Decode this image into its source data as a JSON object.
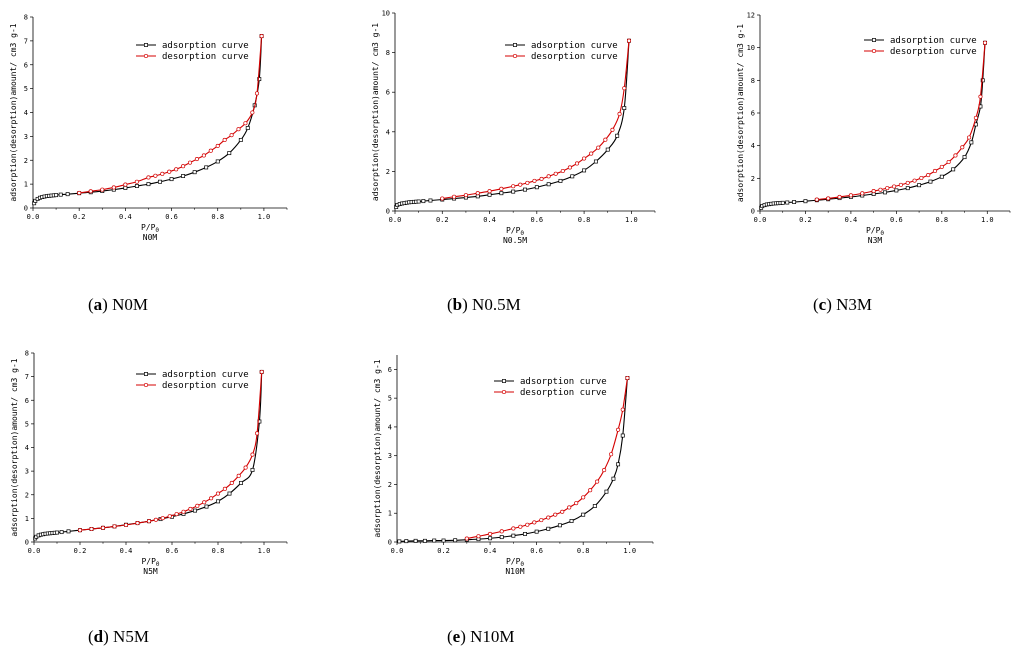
{
  "chart_data": [
    {
      "type": "line",
      "id": "a",
      "caption_letter": "a",
      "caption_text": "N0M",
      "sample_label": "N0M",
      "xlabel": "P/P0",
      "ylabel": "adsorption(desorption)amount/ cm3 g-1",
      "xlim": [
        0,
        1.1
      ],
      "ylim": [
        0,
        8
      ],
      "xticks": [
        "0.0",
        "0.2",
        "0.4",
        "0.6",
        "0.8",
        "1.0"
      ],
      "yticks": [
        "0",
        "1",
        "2",
        "3",
        "4",
        "5",
        "6",
        "7",
        "8"
      ],
      "legend": "top-right",
      "series": [
        {
          "name": "adsorption curve",
          "color": "#000000",
          "x": [
            0.005,
            0.01,
            0.02,
            0.03,
            0.04,
            0.05,
            0.06,
            0.07,
            0.08,
            0.09,
            0.1,
            0.12,
            0.15,
            0.2,
            0.25,
            0.3,
            0.35,
            0.4,
            0.45,
            0.5,
            0.55,
            0.6,
            0.65,
            0.7,
            0.75,
            0.8,
            0.85,
            0.9,
            0.93,
            0.96,
            0.98,
            0.99
          ],
          "y": [
            0.2,
            0.3,
            0.38,
            0.43,
            0.46,
            0.48,
            0.5,
            0.51,
            0.52,
            0.53,
            0.54,
            0.56,
            0.58,
            0.62,
            0.66,
            0.71,
            0.77,
            0.84,
            0.92,
            1.0,
            1.1,
            1.21,
            1.34,
            1.5,
            1.7,
            1.95,
            2.3,
            2.85,
            3.35,
            4.3,
            5.4,
            7.2
          ]
        },
        {
          "name": "desorption curve",
          "color": "#d40000",
          "x": [
            0.99,
            0.97,
            0.95,
            0.92,
            0.89,
            0.86,
            0.83,
            0.8,
            0.77,
            0.74,
            0.71,
            0.68,
            0.65,
            0.62,
            0.59,
            0.56,
            0.53,
            0.5,
            0.45,
            0.4,
            0.35,
            0.3,
            0.25,
            0.2
          ],
          "y": [
            7.2,
            4.8,
            4.0,
            3.55,
            3.3,
            3.05,
            2.85,
            2.6,
            2.4,
            2.2,
            2.05,
            1.9,
            1.75,
            1.62,
            1.52,
            1.43,
            1.35,
            1.28,
            1.1,
            0.98,
            0.86,
            0.77,
            0.7,
            0.63
          ]
        }
      ]
    },
    {
      "type": "line",
      "id": "b",
      "caption_letter": "b",
      "caption_text": "N0.5M",
      "sample_label": "N0.5M",
      "xlabel": "P/P0",
      "ylabel": "adsorption(desorption)amount/ cm3 g-1",
      "xlim": [
        0,
        1.1
      ],
      "ylim": [
        0,
        10
      ],
      "xticks": [
        "0.0",
        "0.2",
        "0.4",
        "0.6",
        "0.8",
        "1.0"
      ],
      "yticks": [
        "0",
        "2",
        "4",
        "6",
        "8",
        "10"
      ],
      "legend": "top-right",
      "series": [
        {
          "name": "adsorption curve",
          "color": "#000000",
          "x": [
            0.005,
            0.01,
            0.02,
            0.03,
            0.04,
            0.05,
            0.06,
            0.07,
            0.08,
            0.09,
            0.1,
            0.12,
            0.15,
            0.2,
            0.25,
            0.3,
            0.35,
            0.4,
            0.45,
            0.5,
            0.55,
            0.6,
            0.65,
            0.7,
            0.75,
            0.8,
            0.85,
            0.9,
            0.94,
            0.97,
            0.99
          ],
          "y": [
            0.2,
            0.3,
            0.35,
            0.38,
            0.4,
            0.42,
            0.44,
            0.45,
            0.46,
            0.47,
            0.48,
            0.5,
            0.53,
            0.58,
            0.63,
            0.68,
            0.74,
            0.82,
            0.9,
            0.98,
            1.08,
            1.2,
            1.35,
            1.52,
            1.75,
            2.05,
            2.5,
            3.1,
            3.8,
            5.2,
            8.6
          ]
        },
        {
          "name": "desorption curve",
          "color": "#d40000",
          "x": [
            0.99,
            0.97,
            0.95,
            0.92,
            0.89,
            0.86,
            0.83,
            0.8,
            0.77,
            0.74,
            0.71,
            0.68,
            0.65,
            0.62,
            0.59,
            0.56,
            0.53,
            0.5,
            0.45,
            0.4,
            0.35,
            0.3,
            0.25,
            0.2
          ],
          "y": [
            8.6,
            6.2,
            4.9,
            4.1,
            3.6,
            3.2,
            2.9,
            2.65,
            2.4,
            2.2,
            2.02,
            1.88,
            1.75,
            1.62,
            1.52,
            1.42,
            1.33,
            1.25,
            1.12,
            1.0,
            0.9,
            0.8,
            0.72,
            0.63
          ]
        }
      ]
    },
    {
      "type": "line",
      "id": "c",
      "caption_letter": "c",
      "caption_text": "N3M",
      "sample_label": "N3M",
      "xlabel": "P/P0",
      "ylabel": "adsorption(desorption)amount/ cm3 g-1",
      "xlim": [
        0,
        1.1
      ],
      "ylim": [
        0,
        12
      ],
      "xticks": [
        "0.0",
        "0.2",
        "0.4",
        "0.6",
        "0.8",
        "1.0"
      ],
      "yticks": [
        "0",
        "2",
        "4",
        "6",
        "8",
        "10",
        "12"
      ],
      "legend": "top-right",
      "series": [
        {
          "name": "adsorption curve",
          "color": "#000000",
          "x": [
            0.005,
            0.01,
            0.02,
            0.03,
            0.04,
            0.05,
            0.06,
            0.07,
            0.08,
            0.09,
            0.1,
            0.12,
            0.15,
            0.2,
            0.25,
            0.3,
            0.35,
            0.4,
            0.45,
            0.5,
            0.55,
            0.6,
            0.65,
            0.7,
            0.75,
            0.8,
            0.85,
            0.9,
            0.93,
            0.95,
            0.97,
            0.98,
            0.99
          ],
          "y": [
            0.2,
            0.3,
            0.36,
            0.4,
            0.42,
            0.44,
            0.46,
            0.47,
            0.48,
            0.49,
            0.5,
            0.52,
            0.55,
            0.6,
            0.66,
            0.72,
            0.79,
            0.86,
            0.95,
            1.04,
            1.14,
            1.26,
            1.4,
            1.58,
            1.8,
            2.1,
            2.55,
            3.3,
            4.2,
            5.3,
            6.4,
            8.0,
            10.3
          ]
        },
        {
          "name": "desorption curve",
          "color": "#d40000",
          "x": [
            0.99,
            0.97,
            0.95,
            0.92,
            0.89,
            0.86,
            0.83,
            0.8,
            0.77,
            0.74,
            0.71,
            0.68,
            0.65,
            0.62,
            0.59,
            0.56,
            0.53,
            0.5,
            0.45,
            0.4,
            0.35,
            0.3,
            0.25
          ],
          "y": [
            10.3,
            7.0,
            5.7,
            4.5,
            3.9,
            3.4,
            3.0,
            2.7,
            2.45,
            2.2,
            2.02,
            1.86,
            1.72,
            1.6,
            1.5,
            1.4,
            1.3,
            1.22,
            1.08,
            0.96,
            0.86,
            0.77,
            0.7
          ]
        }
      ]
    },
    {
      "type": "line",
      "id": "d",
      "caption_letter": "d",
      "caption_text": "N5M",
      "sample_label": "N5M",
      "xlabel": "P/P0",
      "ylabel": "adsorption(desorption)amount/ cm3 g-1",
      "xlim": [
        0,
        1.1
      ],
      "ylim": [
        0,
        8
      ],
      "xticks": [
        "0.0",
        "0.2",
        "0.4",
        "0.6",
        "0.8",
        "1.0"
      ],
      "yticks": [
        "0",
        "1",
        "2",
        "3",
        "4",
        "5",
        "6",
        "7",
        "8"
      ],
      "legend": "top-right",
      "series": [
        {
          "name": "adsorption curve",
          "color": "#000000",
          "x": [
            0.005,
            0.01,
            0.02,
            0.03,
            0.04,
            0.05,
            0.06,
            0.07,
            0.08,
            0.09,
            0.1,
            0.12,
            0.15,
            0.2,
            0.25,
            0.3,
            0.35,
            0.4,
            0.45,
            0.5,
            0.55,
            0.6,
            0.65,
            0.7,
            0.75,
            0.8,
            0.85,
            0.9,
            0.95,
            0.98,
            0.99
          ],
          "y": [
            0.15,
            0.22,
            0.28,
            0.31,
            0.33,
            0.35,
            0.36,
            0.37,
            0.38,
            0.39,
            0.4,
            0.42,
            0.45,
            0.5,
            0.55,
            0.6,
            0.66,
            0.73,
            0.8,
            0.88,
            0.97,
            1.07,
            1.19,
            1.33,
            1.5,
            1.72,
            2.05,
            2.5,
            3.05,
            5.1,
            7.2
          ]
        },
        {
          "name": "desorption curve",
          "color": "#d40000",
          "x": [
            0.99,
            0.97,
            0.95,
            0.92,
            0.89,
            0.86,
            0.83,
            0.8,
            0.77,
            0.74,
            0.71,
            0.68,
            0.65,
            0.62,
            0.59,
            0.56,
            0.53,
            0.5,
            0.45,
            0.4,
            0.35,
            0.3,
            0.25,
            0.2
          ],
          "y": [
            7.2,
            4.6,
            3.7,
            3.15,
            2.8,
            2.5,
            2.25,
            2.05,
            1.85,
            1.68,
            1.53,
            1.4,
            1.28,
            1.18,
            1.09,
            1.01,
            0.94,
            0.88,
            0.8,
            0.72,
            0.66,
            0.6,
            0.55,
            0.5
          ]
        }
      ]
    },
    {
      "type": "line",
      "id": "e",
      "caption_letter": "e",
      "caption_text": "N10M",
      "sample_label": "N10M",
      "xlabel": "P/P0",
      "ylabel": "adsorption(desorption)amount/ cm3 g-1",
      "xlim": [
        0,
        1.1
      ],
      "ylim": [
        0,
        6.5
      ],
      "xticks": [
        "0.0",
        "0.2",
        "0.4",
        "0.6",
        "0.8",
        "1.0"
      ],
      "yticks": [
        "0",
        "1",
        "2",
        "3",
        "4",
        "5",
        "6"
      ],
      "legend": "top-right",
      "series": [
        {
          "name": "adsorption curve",
          "color": "#000000",
          "x": [
            0.01,
            0.04,
            0.08,
            0.12,
            0.16,
            0.2,
            0.25,
            0.3,
            0.35,
            0.4,
            0.45,
            0.5,
            0.55,
            0.6,
            0.65,
            0.7,
            0.75,
            0.8,
            0.85,
            0.9,
            0.93,
            0.95,
            0.97,
            0.99
          ],
          "y": [
            0.02,
            0.03,
            0.04,
            0.04,
            0.05,
            0.05,
            0.06,
            0.08,
            0.1,
            0.13,
            0.17,
            0.22,
            0.28,
            0.36,
            0.46,
            0.58,
            0.73,
            0.95,
            1.25,
            1.75,
            2.2,
            2.7,
            3.7,
            5.7
          ]
        },
        {
          "name": "desorption curve",
          "color": "#d40000",
          "x": [
            0.99,
            0.97,
            0.95,
            0.92,
            0.89,
            0.86,
            0.83,
            0.8,
            0.77,
            0.74,
            0.71,
            0.68,
            0.65,
            0.62,
            0.59,
            0.56,
            0.53,
            0.5,
            0.45,
            0.4,
            0.35,
            0.3
          ],
          "y": [
            5.7,
            4.6,
            3.9,
            3.05,
            2.5,
            2.1,
            1.8,
            1.55,
            1.35,
            1.2,
            1.05,
            0.95,
            0.85,
            0.76,
            0.68,
            0.6,
            0.53,
            0.47,
            0.37,
            0.28,
            0.2,
            0.12
          ]
        }
      ]
    }
  ]
}
